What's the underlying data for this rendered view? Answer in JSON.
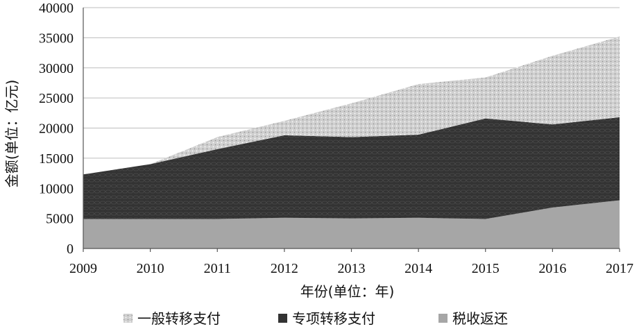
{
  "chart_data": {
    "type": "area",
    "stacked": true,
    "categories": [
      "2009",
      "2010",
      "2011",
      "2012",
      "2013",
      "2014",
      "2015",
      "2016",
      "2017"
    ],
    "series": [
      {
        "name": "税收返还",
        "values": [
          4900,
          4900,
          4900,
          5100,
          5000,
          5100,
          4900,
          6800,
          8000
        ],
        "color": "#a6a6a6"
      },
      {
        "name": "专项转移支付",
        "values": [
          7400,
          9100,
          11600,
          13700,
          13500,
          13800,
          16700,
          13800,
          13800
        ],
        "color": "#333333"
      },
      {
        "name": "一般转移支付",
        "values": [
          0,
          0,
          2000,
          2400,
          5600,
          8400,
          6800,
          11400,
          13400
        ],
        "color": "#cfcfcf"
      }
    ],
    "xlabel": "年份(单位：年)",
    "ylabel": "金额(单位：亿元)",
    "ylim": [
      0,
      40000
    ],
    "yticks": [
      0,
      5000,
      10000,
      15000,
      20000,
      25000,
      30000,
      35000,
      40000
    ],
    "grid": true,
    "legend": {
      "position": "bottom",
      "entries": [
        "一般转移支付",
        "专项转移支付",
        "税收返还"
      ]
    }
  }
}
